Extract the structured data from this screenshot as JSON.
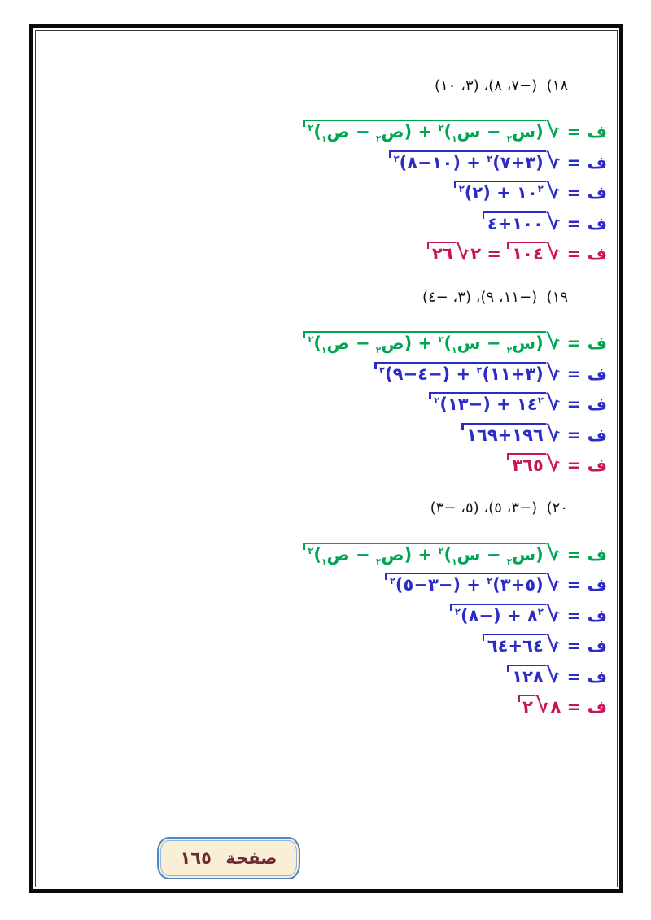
{
  "colors": {
    "formula_green": "#00A550",
    "work_blue": "#2B2BC8",
    "result_crimson": "#C81459",
    "header_black": "#141414",
    "label_background": "#F9EED6",
    "label_border_blue": "#4E86C0",
    "label_text_maroon": "#6E2A33"
  },
  "footer": {
    "page_label": "صفحة  ١٦٥"
  },
  "problems": [
    {
      "number": "١٨",
      "header": "١٨)  (−٧، ٨)، (٣، ١٠)",
      "lines": [
        {
          "color": "green",
          "math": "ف = √[(س_٢ − س_١)^٢ + (ص_٢ − ص_١)^٢]"
        },
        {
          "color": "blue",
          "math": "ف = √[(٣+٧)^٢ + (١٠−٨)^٢]"
        },
        {
          "color": "blue",
          "math": "ف = √[١٠^٢ + (٢)^٢]"
        },
        {
          "color": "blue",
          "math": "ف = √[١٠٠+٤]"
        },
        {
          "color": "crimson",
          "math": "ف = √[١٠٤] = ٢√[٢٦]"
        }
      ]
    },
    {
      "number": "١٩",
      "header": "١٩)  (−١١، ٩)، (٣، −٤)",
      "lines": [
        {
          "color": "green",
          "math": "ف = √[(س_٢ − س_١)^٢ + (ص_٢ − ص_١)^٢]"
        },
        {
          "color": "blue",
          "math": "ف = √[(٣+١١)^٢ + (−٤−٩)^٢]"
        },
        {
          "color": "blue",
          "math": "ف = √[١٤^٢ + (−١٣)^٢]"
        },
        {
          "color": "blue",
          "math": "ف = √[١٩٦+١٦٩]"
        },
        {
          "color": "crimson",
          "math": "ف = √[٣٦٥]"
        }
      ]
    },
    {
      "number": "٢٠",
      "header": "٢٠)  (−٣، ٥)، (٥، −٣)",
      "lines": [
        {
          "color": "green",
          "math": "ف = √[(س_٢ − س_١)^٢ + (ص_٢ − ص_١)^٢]"
        },
        {
          "color": "blue",
          "math": "ف = √[(٥+٣)^٢ + (−٣−٥)^٢]"
        },
        {
          "color": "blue",
          "math": "ف = √[٨^٢ + (−٨)^٢]"
        },
        {
          "color": "blue",
          "math": "ف = √[٦٤+٦٤]"
        },
        {
          "color": "blue",
          "math": "ف = √[١٢٨]"
        },
        {
          "color": "crimson",
          "math": "ف = ٨√[٢]"
        }
      ]
    }
  ]
}
